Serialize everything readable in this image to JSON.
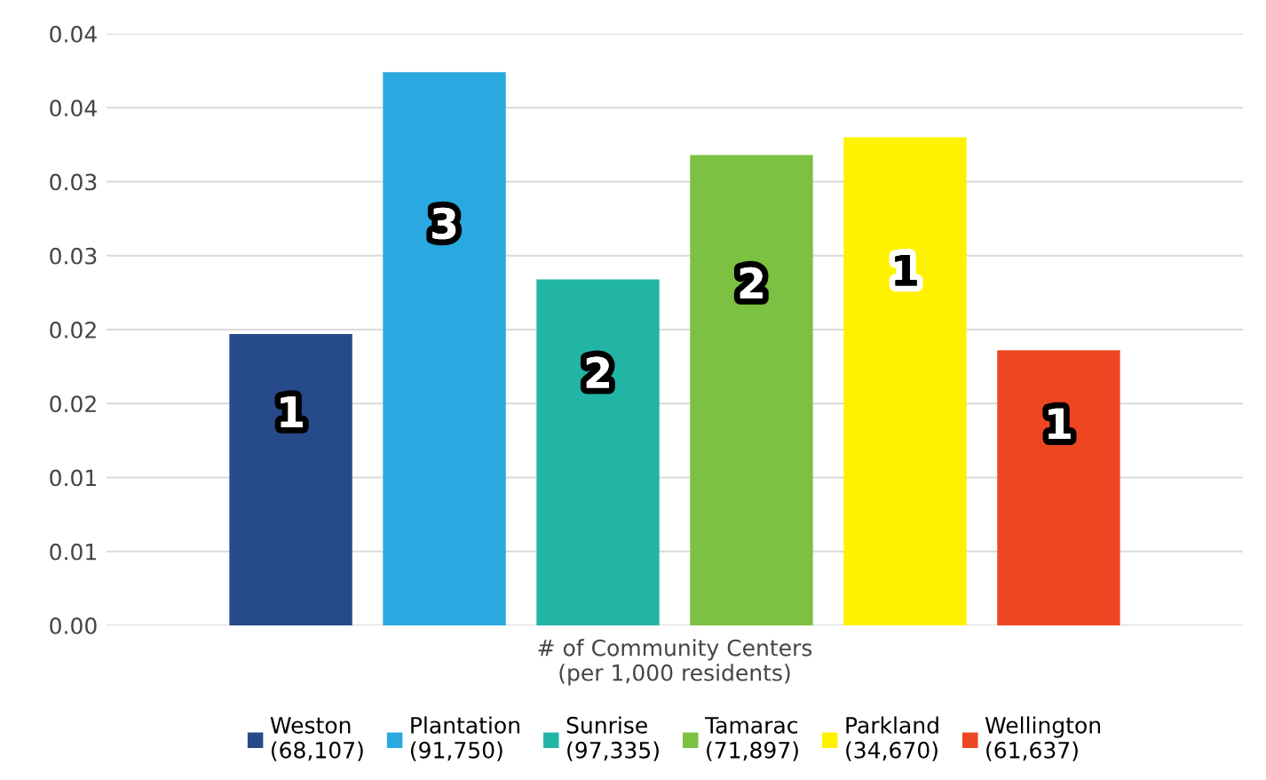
{
  "chart_data": {
    "type": "bar",
    "xlabel": "# of Community Centers\n(per 1,000 residents)",
    "categories": [
      null,
      null,
      null,
      null,
      null,
      null
    ],
    "series": [
      {
        "name": "Weston\n(68,107)",
        "color": "#264a8a",
        "values": [
          0.0197,
          null,
          null,
          null,
          null,
          null
        ]
      },
      {
        "name": "Plantation\n(91,750)",
        "color": "#29a9e0",
        "values": [
          null,
          0.0374,
          null,
          null,
          null,
          null
        ]
      },
      {
        "name": "Sunrise\n(97,335)",
        "color": "#22b5a6",
        "values": [
          null,
          null,
          0.0234,
          null,
          null,
          null
        ]
      },
      {
        "name": "Tamarac\n(71,897)",
        "color": "#7cc142",
        "values": [
          null,
          null,
          null,
          0.0318,
          null,
          null
        ]
      },
      {
        "name": "Parkland\n(34,670)",
        "color": "#fff200",
        "values": [
          null,
          null,
          null,
          null,
          0.033,
          null
        ]
      },
      {
        "name": "Wellington\n(61,637)",
        "color": "#ee4623",
        "values": [
          null,
          null,
          null,
          null,
          null,
          0.0186
        ]
      }
    ],
    "annotations": [
      "1",
      "3",
      "2",
      "2",
      "1",
      "1"
    ],
    "ylim": [
      0,
      0.04
    ],
    "yticks": [
      {
        "value": 0,
        "label": "0.00"
      },
      {
        "value": 0.005,
        "label": "0.01"
      },
      {
        "value": 0.01,
        "label": "0.01"
      },
      {
        "value": 0.015,
        "label": "0.02"
      },
      {
        "value": 0.02,
        "label": "0.02"
      },
      {
        "value": 0.025,
        "label": "0.03"
      },
      {
        "value": 0.03,
        "label": "0.03"
      },
      {
        "value": 0.035,
        "label": "0.04"
      },
      {
        "value": 0.04,
        "label": "0.04"
      }
    ],
    "grid": "y",
    "legend": "bottom"
  }
}
